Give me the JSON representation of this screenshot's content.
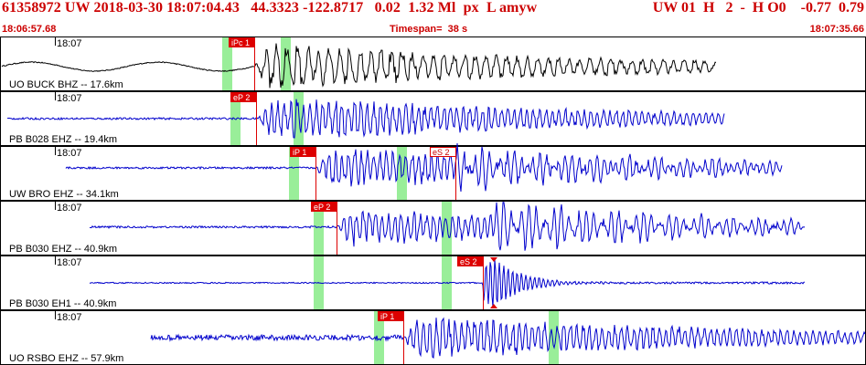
{
  "header": {
    "line": "61358972 UW 2018-03-30 18:07:04.43   44.3323 -122.8717   0.02  1.32 Ml  px  L amyw",
    "right": "UW 01  H   2  -  H O0    -0.77  0.79",
    "start_time": "18:06:57.68",
    "timespan": "Timespan=  38 s",
    "end_time": "18:07:35.66"
  },
  "colors": {
    "header_red": "#cc0000",
    "trace_blue": "#0000cc",
    "trace_black": "#000000",
    "theoretical_green": "#99ee99",
    "pick_red": "#dd0000"
  },
  "traces": [
    {
      "label": "UO BUCK BHZ -- 17.6km",
      "time_label": "18:07",
      "color": "black",
      "picks": [
        {
          "label": "iPc 1",
          "filled": true
        }
      ]
    },
    {
      "label": "PB B028 EHZ -- 19.4km",
      "time_label": "18:07",
      "color": "blue",
      "picks": [
        {
          "label": "eP 2",
          "filled": true
        }
      ]
    },
    {
      "label": "UW BRO EHZ -- 34.1km",
      "time_label": "18:07",
      "color": "blue",
      "picks": [
        {
          "label": "iP 1",
          "filled": true
        },
        {
          "label": "eS 2",
          "filled": false
        }
      ]
    },
    {
      "label": "PB B030 EHZ -- 40.9km",
      "time_label": "18:07",
      "color": "blue",
      "picks": [
        {
          "label": "eP 2",
          "filled": true
        }
      ]
    },
    {
      "label": "PB B030 EH1 -- 40.9km",
      "time_label": "18:07",
      "color": "blue",
      "picks": [
        {
          "label": "eS 2",
          "filled": true
        }
      ]
    },
    {
      "label": "UO RSBO EHZ -- 57.9km",
      "time_label": "18:07",
      "color": "blue",
      "picks": [
        {
          "label": "iP 1",
          "filled": true
        }
      ]
    }
  ]
}
